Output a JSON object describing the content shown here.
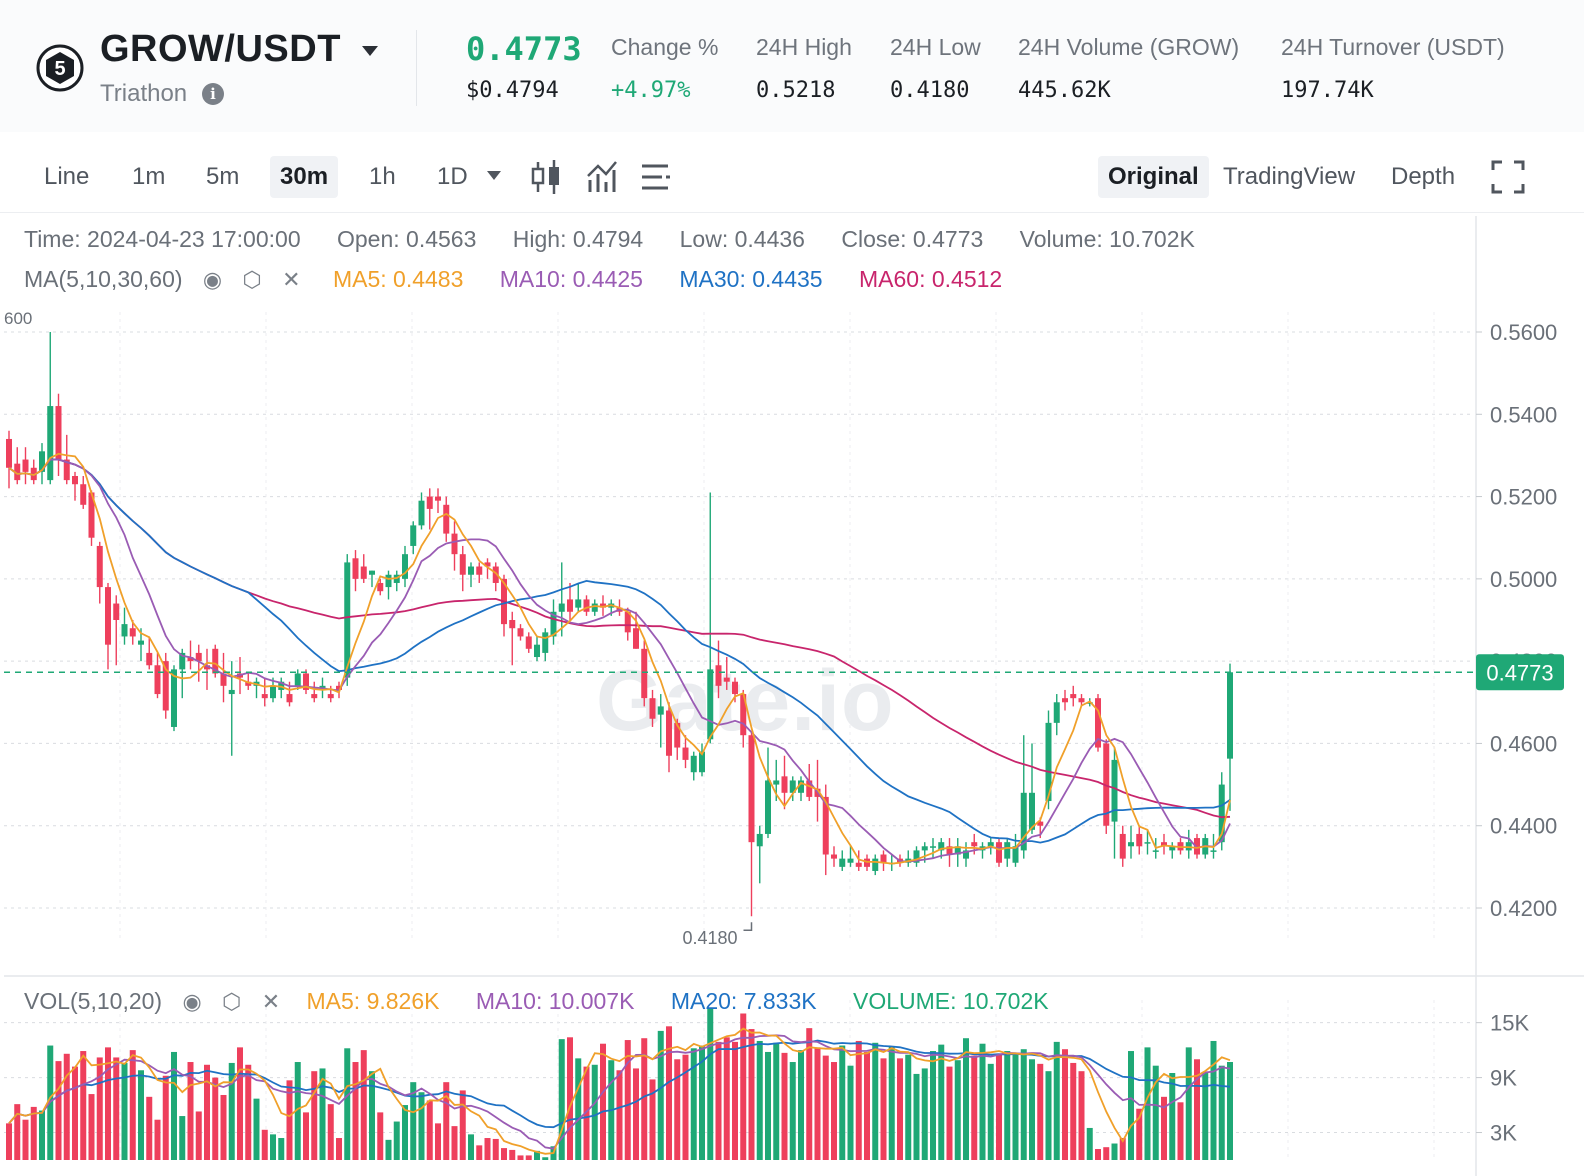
{
  "header": {
    "pair": "GROW/USDT",
    "project": "Triathon",
    "last_price": "0.4773",
    "price_usd": "$0.4794",
    "stats": [
      {
        "label": "Change %",
        "value": "+4.97%",
        "color": "#1fa876"
      },
      {
        "label": "24H High",
        "value": "0.5218"
      },
      {
        "label": "24H Low",
        "value": "0.4180"
      },
      {
        "label": "24H Volume (GROW)",
        "value": "445.62K"
      },
      {
        "label": "24H Turnover (USDT)",
        "value": "197.74K"
      }
    ]
  },
  "toolbar": {
    "intervals": [
      "Line",
      "1m",
      "5m",
      "30m",
      "1h",
      "1D"
    ],
    "active_interval": "30m",
    "views": [
      "Original",
      "TradingView",
      "Depth"
    ],
    "active_view": "Original",
    "icons": [
      "candle-type-icon",
      "indicator-icon",
      "settings-list-icon",
      "fullscreen-icon"
    ]
  },
  "ohlc": {
    "time": "Time: 2024-04-23 17:00:00",
    "open": "Open: 0.4563",
    "high": "High: 0.4794",
    "low": "Low: 0.4436",
    "close": "Close: 0.4773",
    "volume": "Volume: 10.702K"
  },
  "ma_legend": {
    "title": "MA(5,10,30,60)",
    "items": [
      {
        "label": "MA5: 0.4483",
        "color": "#f0a02a"
      },
      {
        "label": "MA10: 0.4425",
        "color": "#9a5cb4"
      },
      {
        "label": "MA30: 0.4435",
        "color": "#1f72c4"
      },
      {
        "label": "MA60: 0.4512",
        "color": "#c8256c"
      }
    ]
  },
  "vol_legend": {
    "title": "VOL(5,10,20)",
    "items": [
      {
        "label": "MA5: 9.826K",
        "color": "#f0a02a"
      },
      {
        "label": "MA10: 10.007K",
        "color": "#9a5cb4"
      },
      {
        "label": "MA20: 7.833K",
        "color": "#1f72c4"
      },
      {
        "label": "VOLUME: 10.702K",
        "color": "#1fa876"
      }
    ]
  },
  "watermark": "Gate.io",
  "chart_data": {
    "type": "candlestick",
    "interval": "30m",
    "price_axis": {
      "ticks": [
        "0.5600",
        "0.5400",
        "0.5200",
        "0.5000",
        "0.4800",
        "0.4600",
        "0.4400",
        "0.4200"
      ],
      "range": [
        0.406,
        0.561
      ]
    },
    "volume_axis": {
      "ticks": [
        "15K",
        "9K",
        "3K"
      ],
      "range": [
        0,
        16600
      ]
    },
    "left_clip_label": "600",
    "current_price": {
      "label": "0.4773",
      "value": 0.4773
    },
    "low_marker": {
      "label": "0.4180",
      "value": 0.418
    },
    "colors": {
      "up": "#1fa876",
      "down": "#ee3f5c"
    },
    "candles": [
      [
        0.534,
        0.536,
        0.522,
        0.527,
        4000
      ],
      [
        0.528,
        0.532,
        0.523,
        0.524,
        6100
      ],
      [
        0.529,
        0.532,
        0.523,
        0.526,
        4400
      ],
      [
        0.527,
        0.529,
        0.523,
        0.524,
        5800
      ],
      [
        0.526,
        0.533,
        0.523,
        0.531,
        5400
      ],
      [
        0.524,
        0.56,
        0.523,
        0.542,
        12500
      ],
      [
        0.542,
        0.545,
        0.525,
        0.529,
        10800
      ],
      [
        0.529,
        0.535,
        0.523,
        0.524,
        11600
      ],
      [
        0.525,
        0.526,
        0.519,
        0.523,
        10200
      ],
      [
        0.523,
        0.525,
        0.517,
        0.518,
        11900
      ],
      [
        0.521,
        0.5215,
        0.508,
        0.51,
        7200
      ],
      [
        0.508,
        0.509,
        0.494,
        0.498,
        11200
      ],
      [
        0.498,
        0.499,
        0.478,
        0.484,
        12300
      ],
      [
        0.494,
        0.496,
        0.479,
        0.49,
        11200
      ],
      [
        0.486,
        0.493,
        0.484,
        0.489,
        10600
      ],
      [
        0.488,
        0.49,
        0.484,
        0.486,
        12000
      ],
      [
        0.484,
        0.488,
        0.48,
        0.485,
        9800
      ],
      [
        0.482,
        0.486,
        0.478,
        0.479,
        6900
      ],
      [
        0.479,
        0.482,
        0.471,
        0.472,
        4400
      ],
      [
        0.48,
        0.482,
        0.466,
        0.468,
        9200
      ],
      [
        0.464,
        0.479,
        0.463,
        0.478,
        11800
      ],
      [
        0.478,
        0.483,
        0.471,
        0.482,
        4800
      ],
      [
        0.481,
        0.485,
        0.478,
        0.48,
        10700
      ],
      [
        0.482,
        0.484,
        0.475,
        0.48,
        5300
      ],
      [
        0.479,
        0.483,
        0.473,
        0.478,
        10400
      ],
      [
        0.483,
        0.484,
        0.476,
        0.477,
        9000
      ],
      [
        0.477,
        0.482,
        0.47,
        0.474,
        7100
      ],
      [
        0.472,
        0.48,
        0.457,
        0.473,
        10600
      ],
      [
        0.477,
        0.481,
        0.472,
        0.476,
        12300
      ],
      [
        0.475,
        0.477,
        0.473,
        0.474,
        10400
      ],
      [
        0.474,
        0.476,
        0.471,
        0.475,
        6700
      ],
      [
        0.472,
        0.476,
        0.469,
        0.471,
        3300
      ],
      [
        0.471,
        0.476,
        0.47,
        0.474,
        2800
      ],
      [
        0.473,
        0.476,
        0.471,
        0.475,
        2400
      ],
      [
        0.472,
        0.475,
        0.469,
        0.47,
        8700
      ],
      [
        0.474,
        0.478,
        0.473,
        0.477,
        10700
      ],
      [
        0.477,
        0.478,
        0.472,
        0.473,
        5200
      ],
      [
        0.472,
        0.475,
        0.47,
        0.471,
        9700
      ],
      [
        0.473,
        0.476,
        0.471,
        0.474,
        10000
      ],
      [
        0.472,
        0.474,
        0.47,
        0.471,
        6100
      ],
      [
        0.474,
        0.475,
        0.471,
        0.473,
        2400
      ],
      [
        0.476,
        0.506,
        0.474,
        0.504,
        12200
      ],
      [
        0.505,
        0.507,
        0.497,
        0.5,
        10700
      ],
      [
        0.503,
        0.506,
        0.499,
        0.5,
        12000
      ],
      [
        0.501,
        0.502,
        0.498,
        0.502,
        9700
      ],
      [
        0.499,
        0.5,
        0.496,
        0.497,
        5200
      ],
      [
        0.498,
        0.502,
        0.495,
        0.501,
        2200
      ],
      [
        0.499,
        0.502,
        0.497,
        0.501,
        4200
      ],
      [
        0.5,
        0.508,
        0.498,
        0.506,
        6000
      ],
      [
        0.508,
        0.514,
        0.506,
        0.513,
        8500
      ],
      [
        0.513,
        0.521,
        0.512,
        0.519,
        7400
      ],
      [
        0.52,
        0.522,
        0.512,
        0.517,
        6500
      ],
      [
        0.52,
        0.522,
        0.516,
        0.519,
        4000
      ],
      [
        0.518,
        0.52,
        0.509,
        0.511,
        8500
      ],
      [
        0.511,
        0.514,
        0.502,
        0.506,
        3700
      ],
      [
        0.506,
        0.508,
        0.497,
        0.501,
        7600
      ],
      [
        0.501,
        0.504,
        0.498,
        0.503,
        2800
      ],
      [
        0.503,
        0.504,
        0.499,
        0.501,
        1600
      ],
      [
        0.504,
        0.505,
        0.5,
        0.503,
        2400
      ],
      [
        0.503,
        0.504,
        0.497,
        0.499,
        2300
      ],
      [
        0.5,
        0.501,
        0.486,
        0.489,
        1300
      ],
      [
        0.49,
        0.492,
        0.479,
        0.488,
        1100
      ],
      [
        0.488,
        0.489,
        0.485,
        0.486,
        500
      ],
      [
        0.486,
        0.487,
        0.482,
        0.483,
        500
      ],
      [
        0.481,
        0.486,
        0.48,
        0.484,
        1000
      ],
      [
        0.482,
        0.488,
        0.48,
        0.487,
        300
      ],
      [
        0.486,
        0.495,
        0.484,
        0.492,
        1500
      ],
      [
        0.492,
        0.504,
        0.486,
        0.494,
        13200
      ],
      [
        0.495,
        0.499,
        0.49,
        0.492,
        13400
      ],
      [
        0.493,
        0.499,
        0.492,
        0.495,
        11100
      ],
      [
        0.495,
        0.496,
        0.491,
        0.492,
        10200
      ],
      [
        0.492,
        0.495,
        0.491,
        0.494,
        10400
      ],
      [
        0.494,
        0.496,
        0.491,
        0.493,
        12700
      ],
      [
        0.493,
        0.495,
        0.491,
        0.494,
        10900
      ],
      [
        0.493,
        0.495,
        0.491,
        0.492,
        9800
      ],
      [
        0.492,
        0.493,
        0.485,
        0.487,
        13100
      ],
      [
        0.488,
        0.492,
        0.483,
        0.483,
        10000
      ],
      [
        0.483,
        0.485,
        0.469,
        0.471,
        13300
      ],
      [
        0.471,
        0.473,
        0.464,
        0.466,
        8800
      ],
      [
        0.467,
        0.472,
        0.459,
        0.469,
        14100
      ],
      [
        0.468,
        0.47,
        0.453,
        0.457,
        14600
      ],
      [
        0.465,
        0.466,
        0.456,
        0.459,
        11000
      ],
      [
        0.459,
        0.462,
        0.454,
        0.456,
        11500
      ],
      [
        0.453,
        0.458,
        0.451,
        0.457,
        12200
      ],
      [
        0.453,
        0.46,
        0.452,
        0.458,
        12500
      ],
      [
        0.461,
        0.521,
        0.46,
        0.478,
        16600
      ],
      [
        0.479,
        0.485,
        0.471,
        0.474,
        12900
      ],
      [
        0.476,
        0.481,
        0.473,
        0.475,
        13400
      ],
      [
        0.475,
        0.476,
        0.47,
        0.472,
        12900
      ],
      [
        0.472,
        0.473,
        0.459,
        0.462,
        16000
      ],
      [
        0.462,
        0.463,
        0.418,
        0.436,
        14300
      ],
      [
        0.435,
        0.44,
        0.426,
        0.438,
        13000
      ],
      [
        0.438,
        0.459,
        0.437,
        0.451,
        11800
      ],
      [
        0.45,
        0.456,
        0.446,
        0.451,
        12800
      ],
      [
        0.452,
        0.457,
        0.444,
        0.448,
        11700
      ],
      [
        0.448,
        0.452,
        0.446,
        0.451,
        10700
      ],
      [
        0.448,
        0.452,
        0.446,
        0.451,
        12000
      ],
      [
        0.451,
        0.455,
        0.446,
        0.447,
        14400
      ],
      [
        0.449,
        0.456,
        0.441,
        0.447,
        12300
      ],
      [
        0.447,
        0.45,
        0.428,
        0.433,
        11400
      ],
      [
        0.433,
        0.435,
        0.43,
        0.432,
        10700
      ],
      [
        0.43,
        0.434,
        0.429,
        0.432,
        12500
      ],
      [
        0.431,
        0.435,
        0.43,
        0.432,
        10300
      ],
      [
        0.431,
        0.434,
        0.429,
        0.43,
        13000
      ],
      [
        0.432,
        0.433,
        0.429,
        0.43,
        11800
      ],
      [
        0.429,
        0.433,
        0.428,
        0.432,
        12800
      ],
      [
        0.433,
        0.434,
        0.429,
        0.431,
        11100
      ],
      [
        0.431,
        0.433,
        0.429,
        0.431,
        12400
      ],
      [
        0.432,
        0.433,
        0.43,
        0.431,
        11100
      ],
      [
        0.431,
        0.434,
        0.43,
        0.432,
        11500
      ],
      [
        0.431,
        0.435,
        0.43,
        0.434,
        9400
      ],
      [
        0.434,
        0.436,
        0.431,
        0.435,
        10000
      ],
      [
        0.435,
        0.437,
        0.432,
        0.435,
        11900
      ],
      [
        0.434,
        0.437,
        0.432,
        0.436,
        12600
      ],
      [
        0.435,
        0.437,
        0.43,
        0.433,
        10200
      ],
      [
        0.433,
        0.437,
        0.43,
        0.435,
        10900
      ],
      [
        0.432,
        0.436,
        0.43,
        0.434,
        13300
      ],
      [
        0.436,
        0.438,
        0.433,
        0.435,
        11400
      ],
      [
        0.434,
        0.436,
        0.432,
        0.435,
        12700
      ],
      [
        0.435,
        0.437,
        0.433,
        0.436,
        10500
      ],
      [
        0.436,
        0.437,
        0.43,
        0.431,
        11600
      ],
      [
        0.432,
        0.437,
        0.43,
        0.436,
        11900
      ],
      [
        0.431,
        0.438,
        0.43,
        0.435,
        11500
      ],
      [
        0.434,
        0.462,
        0.432,
        0.448,
        12100
      ],
      [
        0.439,
        0.46,
        0.438,
        0.448,
        11000
      ],
      [
        0.441,
        0.442,
        0.437,
        0.44,
        10500
      ],
      [
        0.446,
        0.468,
        0.444,
        0.465,
        9700
      ],
      [
        0.465,
        0.472,
        0.462,
        0.47,
        12900
      ],
      [
        0.471,
        0.473,
        0.468,
        0.47,
        12100
      ],
      [
        0.472,
        0.474,
        0.469,
        0.471,
        10600
      ],
      [
        0.471,
        0.472,
        0.469,
        0.47,
        9700
      ],
      [
        0.47,
        0.471,
        0.469,
        0.47,
        3500
      ],
      [
        0.471,
        0.472,
        0.458,
        0.459,
        1200
      ],
      [
        0.46,
        0.461,
        0.438,
        0.44,
        1400
      ],
      [
        0.441,
        0.459,
        0.432,
        0.456,
        1800
      ],
      [
        0.438,
        0.44,
        0.43,
        0.432,
        2400
      ],
      [
        0.435,
        0.44,
        0.432,
        0.436,
        11900
      ],
      [
        0.438,
        0.44,
        0.433,
        0.435,
        5600
      ],
      [
        0.436,
        0.439,
        0.433,
        0.436,
        12300
      ],
      [
        0.434,
        0.437,
        0.432,
        0.434,
        10300
      ],
      [
        0.436,
        0.438,
        0.433,
        0.435,
        6900
      ],
      [
        0.434,
        0.436,
        0.432,
        0.435,
        9500
      ],
      [
        0.436,
        0.437,
        0.433,
        0.434,
        6300
      ],
      [
        0.434,
        0.439,
        0.432,
        0.436,
        12300
      ],
      [
        0.437,
        0.438,
        0.432,
        0.433,
        11000
      ],
      [
        0.433,
        0.438,
        0.432,
        0.437,
        9500
      ],
      [
        0.434,
        0.438,
        0.432,
        0.434,
        13000
      ],
      [
        0.436,
        0.453,
        0.434,
        0.45,
        10300
      ],
      [
        0.4563,
        0.4794,
        0.4436,
        0.4773,
        10702
      ]
    ]
  }
}
